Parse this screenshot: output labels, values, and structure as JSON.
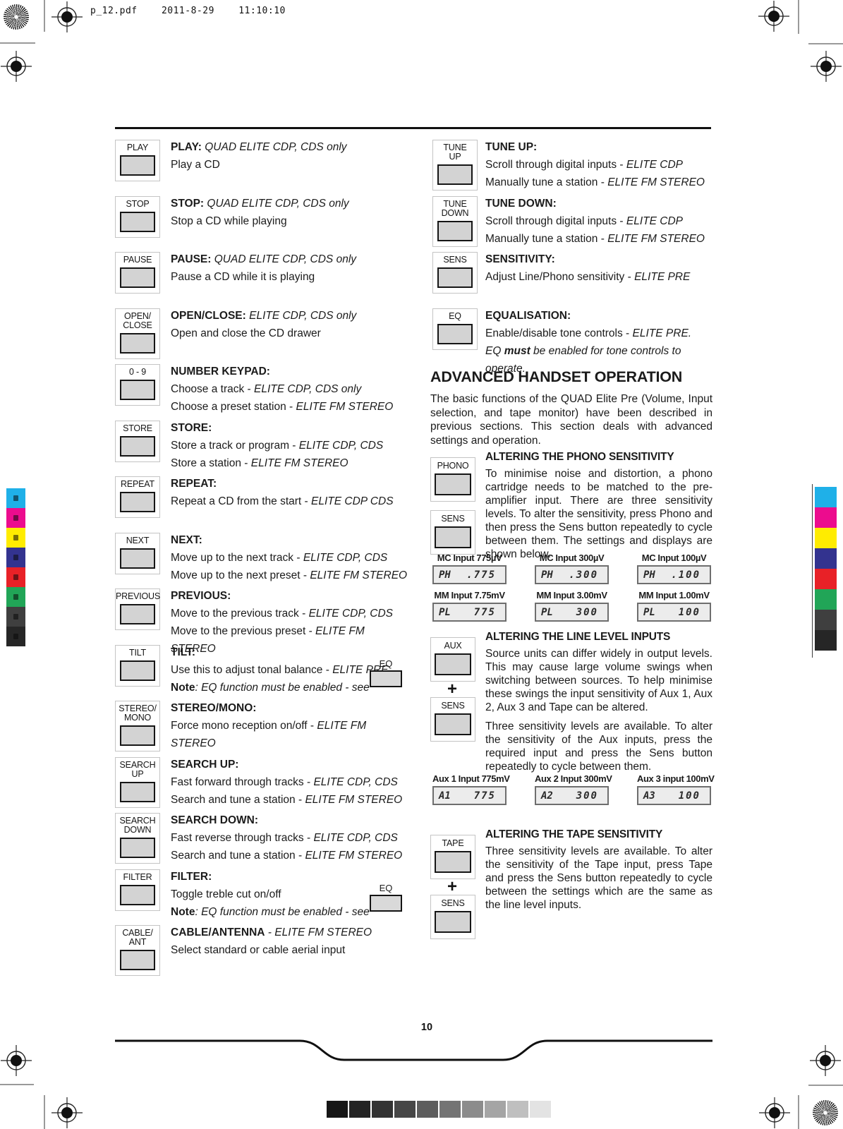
{
  "header": {
    "file": "p_12.pdf",
    "date": "2011-8-29",
    "time": "11:10:10"
  },
  "left_items": [
    {
      "button": [
        "PLAY"
      ],
      "heading": [
        [
          "PLAY: ",
          "b"
        ],
        [
          "QUAD ELITE CDP, CDS only",
          "i"
        ]
      ],
      "lines": [
        [
          [
            "Play a CD",
            ""
          ]
        ]
      ],
      "eq": false
    },
    {
      "button": [
        "STOP"
      ],
      "heading": [
        [
          "STOP: ",
          "b"
        ],
        [
          "QUAD ELITE CDP, CDS only",
          "i"
        ]
      ],
      "lines": [
        [
          [
            "Stop a CD while playing",
            ""
          ]
        ]
      ],
      "eq": false
    },
    {
      "button": [
        "PAUSE"
      ],
      "heading": [
        [
          "PAUSE: ",
          "b"
        ],
        [
          "QUAD ELITE CDP, CDS only",
          "i"
        ]
      ],
      "lines": [
        [
          [
            "Pause a CD while it is playing",
            ""
          ]
        ]
      ],
      "eq": false
    },
    {
      "button": [
        "OPEN/",
        "CLOSE"
      ],
      "heading": [
        [
          "OPEN/CLOSE: ",
          "b"
        ],
        [
          "ELITE CDP, CDS only",
          "i"
        ]
      ],
      "lines": [
        [
          [
            "Open and close the CD drawer",
            ""
          ]
        ]
      ],
      "eq": false
    },
    {
      "button": [
        "0 - 9"
      ],
      "heading": [
        [
          "NUMBER KEYPAD:",
          "b"
        ]
      ],
      "lines": [
        [
          [
            "Choose a track - ",
            ""
          ],
          [
            "ELITE CDP, CDS only",
            "i"
          ]
        ],
        [
          [
            "Choose a preset station - ",
            ""
          ],
          [
            "ELITE  FM STEREO",
            "i"
          ]
        ]
      ],
      "eq": false
    },
    {
      "button": [
        "STORE"
      ],
      "heading": [
        [
          "STORE:",
          "b"
        ]
      ],
      "lines": [
        [
          [
            "Store a track or program - ",
            ""
          ],
          [
            "ELITE CDP, CDS",
            "i"
          ]
        ],
        [
          [
            "Store a station - ",
            ""
          ],
          [
            "ELITE  FM STEREO",
            "i"
          ]
        ]
      ],
      "eq": false
    },
    {
      "button": [
        "REPEAT"
      ],
      "heading": [
        [
          "REPEAT:",
          "b"
        ]
      ],
      "lines": [
        [
          [
            "Repeat a CD from the start - ",
            ""
          ],
          [
            "ELITE CDP CDS",
            "i"
          ]
        ]
      ],
      "eq": false
    },
    {
      "button": [
        "NEXT"
      ],
      "heading": [
        [
          "NEXT:",
          "b"
        ]
      ],
      "lines": [
        [
          [
            "Move up to the next track - ",
            ""
          ],
          [
            "ELITE CDP, CDS",
            "i"
          ]
        ],
        [
          [
            "Move up to the next preset - ",
            ""
          ],
          [
            "ELITE  FM STEREO",
            "i"
          ]
        ]
      ],
      "eq": false
    },
    {
      "button": [
        "PREVIOUS"
      ],
      "heading": [
        [
          "PREVIOUS:",
          "b"
        ]
      ],
      "lines": [
        [
          [
            "Move to the previous track - ",
            ""
          ],
          [
            "ELITE CDP, CDS",
            "i"
          ]
        ],
        [
          [
            "Move to the previous preset - ",
            ""
          ],
          [
            "ELITE  FM STEREO",
            "i"
          ]
        ]
      ],
      "eq": false
    },
    {
      "button": [
        "TILT"
      ],
      "heading": [
        [
          "TILT:",
          "b"
        ]
      ],
      "lines": [
        [
          [
            "Use this to adjust tonal balance - ",
            ""
          ],
          [
            "ELITE PRE",
            "i"
          ]
        ],
        [
          [
            "Note",
            "b"
          ],
          [
            ": EQ function must be enabled - see",
            "i"
          ]
        ]
      ],
      "eq": true,
      "eq_label": "EQ"
    },
    {
      "button": [
        "STEREO/",
        "MONO"
      ],
      "heading": [
        [
          "STEREO/MONO:",
          "b"
        ]
      ],
      "lines": [
        [
          [
            "Force mono reception on/off - ",
            ""
          ],
          [
            "ELITE  FM STEREO",
            "i"
          ]
        ]
      ],
      "eq": false
    },
    {
      "button": [
        "SEARCH",
        "UP"
      ],
      "heading": [
        [
          "SEARCH UP:",
          "b"
        ]
      ],
      "lines": [
        [
          [
            "Fast forward through tracks - ",
            ""
          ],
          [
            "ELITE CDP, CDS",
            "i"
          ]
        ],
        [
          [
            "Search and tune a station - ",
            ""
          ],
          [
            "ELITE FM STEREO",
            "i"
          ]
        ]
      ],
      "eq": false
    },
    {
      "button": [
        "SEARCH",
        "DOWN"
      ],
      "heading": [
        [
          "SEARCH DOWN:",
          "b"
        ]
      ],
      "lines": [
        [
          [
            "Fast reverse through tracks - ",
            ""
          ],
          [
            "ELITE CDP, CDS",
            "i"
          ]
        ],
        [
          [
            "Search and tune a station - ",
            ""
          ],
          [
            "ELITE FM STEREO",
            "i"
          ]
        ]
      ],
      "eq": false
    },
    {
      "button": [
        "FILTER"
      ],
      "heading": [
        [
          "FILTER:",
          "b"
        ]
      ],
      "lines": [
        [
          [
            "Toggle treble cut on/off",
            ""
          ]
        ],
        [
          [
            "Note",
            "b"
          ],
          [
            ": EQ function must be enabled - see",
            "i"
          ]
        ]
      ],
      "eq": true,
      "eq_label": "EQ"
    },
    {
      "button": [
        "CABLE/",
        "ANT"
      ],
      "heading": [
        [
          "CABLE/ANTENNA",
          "b"
        ],
        [
          " - ELITE FM STEREO",
          "i"
        ]
      ],
      "lines": [
        [
          [
            "Select standard or cable aerial input",
            ""
          ]
        ]
      ],
      "eq": false
    }
  ],
  "right_items": [
    {
      "button": [
        "TUNE",
        "UP"
      ],
      "heading": [
        [
          "TUNE UP:",
          "b"
        ]
      ],
      "lines": [
        [
          [
            "Scroll through digital inputs - ",
            ""
          ],
          [
            "ELITE CDP",
            "i"
          ]
        ],
        [
          [
            "Manually tune a station - ",
            ""
          ],
          [
            "ELITE  FM STEREO",
            "i"
          ]
        ]
      ],
      "eq": false
    },
    {
      "button": [
        "TUNE",
        "DOWN"
      ],
      "heading": [
        [
          "TUNE DOWN:",
          "b"
        ]
      ],
      "lines": [
        [
          [
            "Scroll through digital inputs - ",
            ""
          ],
          [
            "ELITE CDP",
            "i"
          ]
        ],
        [
          [
            "Manually tune a station - ",
            ""
          ],
          [
            "ELITE  FM STEREO",
            "i"
          ]
        ]
      ],
      "eq": false
    },
    {
      "button": [
        "SENS"
      ],
      "heading": [
        [
          "SENSITIVITY:",
          "b"
        ]
      ],
      "lines": [
        [
          [
            "Adjust Line/Phono sensitivity - ",
            ""
          ],
          [
            "ELITE PRE",
            "i"
          ]
        ]
      ],
      "eq": false
    },
    {
      "button": [
        "EQ"
      ],
      "heading": [
        [
          "EQUALISATION:",
          "b"
        ]
      ],
      "lines": [
        [
          [
            "Enable/disable tone controls - ",
            ""
          ],
          [
            "ELITE PRE.",
            "i"
          ]
        ],
        [
          [
            "EQ ",
            "i"
          ],
          [
            "must",
            "bi"
          ],
          [
            " be enabled for tone controls to operate.",
            "i"
          ]
        ]
      ],
      "eq": false
    }
  ],
  "advanced": {
    "title": "ADVANCED HANDSET OPERATION",
    "intro": "The basic functions of the QUAD Elite Pre (Volume, Input selection, and tape monitor) have been described in previous sections. This section deals with advanced settings and operation.",
    "phono": {
      "buttons": [
        "PHONO",
        "SENS"
      ],
      "heading": "ALTERING THE PHONO SENSITIVITY",
      "body": "To minimise noise and distortion, a phono cartridge needs to be matched to the pre-amplifier input. There are three sensitivity levels. To alter the sensitivity, press Phono and then press the Sens button repeatedly to cycle between them. The settings and displays are shown below.",
      "display_rows": [
        [
          {
            "label": "MC Input 775µV",
            "name": "PH",
            "value": ".775"
          },
          {
            "label": "MC Input 300µV",
            "name": "PH",
            "value": ".300"
          },
          {
            "label": "MC Input 100µV",
            "name": "PH",
            "value": ".100"
          }
        ],
        [
          {
            "label": "MM Input 7.75mV",
            "name": "PL",
            "value": "775"
          },
          {
            "label": "MM Input 3.00mV",
            "name": "PL",
            "value": "300"
          },
          {
            "label": "MM Input 1.00mV",
            "name": "PL",
            "value": "100"
          }
        ]
      ]
    },
    "line_level": {
      "buttons": [
        "AUX",
        "+",
        "SENS"
      ],
      "heading": "ALTERING THE LINE LEVEL INPUTS",
      "body1": "Source units can differ widely in output levels. This may cause large volume swings when switching between sources. To help minimise these swings the input sensitivity of Aux 1, Aux 2, Aux 3 and Tape can be altered.",
      "body2": "Three sensitivity levels are available. To alter the sensitivity of the Aux inputs, press the required input and press the Sens button repeatedly to cycle between them.",
      "display_rows": [
        [
          {
            "label": "Aux 1 Input 775mV",
            "name": "A1",
            "value": "775"
          },
          {
            "label": "Aux 2 Input 300mV",
            "name": "A2",
            "value": "300"
          },
          {
            "label": "Aux 3 input 100mV",
            "name": "A3",
            "value": "100"
          }
        ]
      ]
    },
    "tape": {
      "buttons": [
        "TAPE",
        "+",
        "SENS"
      ],
      "heading": "ALTERING THE TAPE SENSITIVITY",
      "body": "Three sensitivity levels are available. To alter the sensitivity of the Tape input, press Tape and press the Sens button repeatedly to cycle between the settings which are the same as the line level inputs."
    }
  },
  "footer": {
    "page_number": "10"
  },
  "calibration": {
    "color_bar": [
      "#1fb0e8",
      "#ec0c8e",
      "#ffec00",
      "#33338f",
      "#e82127",
      "#21a557",
      "#3f3f3f",
      "#262626"
    ],
    "grayscale_bar": [
      "#161616",
      "#242424",
      "#333333",
      "#474747",
      "#5d5d5d",
      "#747474",
      "#8c8c8c",
      "#a5a5a5",
      "#bfbfbf",
      "#e3e3e3"
    ]
  }
}
